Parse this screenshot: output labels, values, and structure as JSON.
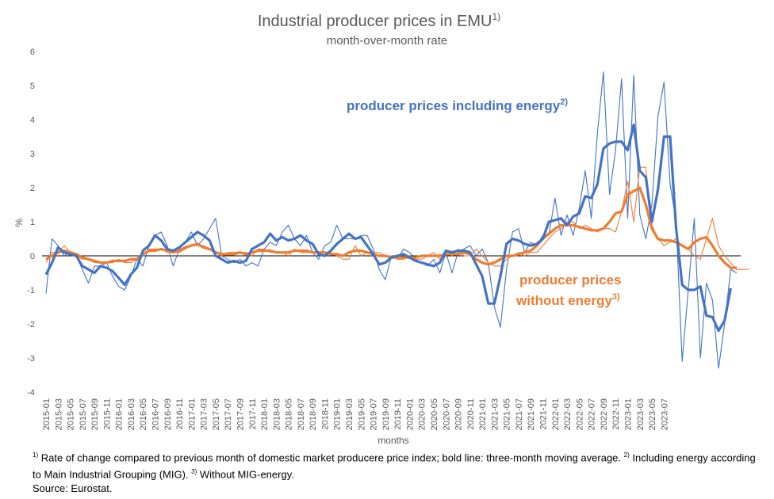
{
  "chart_data": {
    "type": "line",
    "title": "Industrial producer prices in EMU",
    "title_sup": "1)",
    "subtitle": "month-over-month rate",
    "ylabel": "%",
    "xlabel": "months",
    "ylim": [
      -4,
      6
    ],
    "yticks": [
      -4,
      -3,
      -2,
      -1,
      0,
      1,
      2,
      3,
      4,
      5,
      6
    ],
    "grid": false,
    "colors": {
      "including": "#4472C4",
      "without": "#ED7D31"
    },
    "x_labels": [
      "2015-01",
      "2015-03",
      "2015-05",
      "2015-07",
      "2015-09",
      "2015-11",
      "2016-01",
      "2016-03",
      "2016-05",
      "2016-07",
      "2016-09",
      "2016-11",
      "2017-01",
      "2017-03",
      "2017-05",
      "2017-07",
      "2017-09",
      "2017-11",
      "2018-01",
      "2018-03",
      "2018-05",
      "2018-07",
      "2018-09",
      "2018-11",
      "2019-01",
      "2019-03",
      "2019-05",
      "2019-07",
      "2019-09",
      "2019-11",
      "2020-01",
      "2020-03",
      "2020-05",
      "2020-07",
      "2020-09",
      "2020-11",
      "2021-01",
      "2021-03",
      "2021-05",
      "2021-07",
      "2021-09",
      "2021-11",
      "2022-01",
      "2022-03",
      "2022-05",
      "2022-07",
      "2022-09",
      "2022-11",
      "2023-01",
      "2023-03",
      "2023-05",
      "2023-07"
    ],
    "annotations": {
      "including": {
        "text": "producer prices including energy",
        "sup": "2)"
      },
      "without_1": {
        "text": "producer prices"
      },
      "without_2": {
        "text": "without energy",
        "sup": "3)"
      }
    },
    "series": [
      {
        "key": "incl_monthly",
        "label": "producer prices including energy",
        "values": [
          -1.1,
          0.5,
          0.3,
          0.0,
          0.1,
          0.0,
          -0.4,
          -0.8,
          -0.3,
          -0.3,
          -0.2,
          -0.6,
          -0.9,
          -1.0,
          -0.6,
          -0.1,
          -0.3,
          0.3,
          0.6,
          0.7,
          0.3,
          -0.3,
          0.2,
          0.4,
          0.7,
          0.3,
          0.5,
          0.8,
          1.1,
          0.0,
          -0.1,
          -0.2,
          -0.1,
          -0.3,
          -0.2,
          -0.3,
          0.2,
          0.4,
          0.3,
          0.7,
          0.9,
          0.5,
          0.3,
          0.6,
          0.1,
          -0.1,
          0.3,
          0.4,
          0.9,
          0.5,
          0.5,
          0.5,
          0.6,
          0.6,
          0.2,
          -0.4,
          -0.7,
          0.0,
          -0.1,
          0.2,
          0.1,
          -0.1,
          -0.2,
          -0.3,
          -0.1,
          -0.5,
          0.1,
          -0.5,
          0.1,
          0.2,
          0.3,
          0.0,
          0.2,
          -0.2,
          -1.5,
          -2.1,
          -0.4,
          0.7,
          0.8,
          0.1,
          0.4,
          0.3,
          0.6,
          0.6,
          1.7,
          0.6,
          1.2,
          0.6,
          1.4,
          2.5,
          1.1,
          3.6,
          5.4,
          1.8,
          3.1,
          5.2,
          1.1,
          5.3,
          1.2,
          0.5,
          1.5,
          4.1,
          5.1,
          2.1,
          1.0,
          -3.1,
          -1.0,
          1.1,
          -3.0,
          -0.8,
          -1.3,
          -3.3,
          -2.0,
          -0.4,
          -0.5
        ]
      },
      {
        "key": "incl_ma3",
        "label": "three-month moving average",
        "values": [
          -0.55,
          -0.2,
          0.25,
          0.1,
          0.05,
          0.0,
          -0.3,
          -0.4,
          -0.5,
          -0.3,
          -0.35,
          -0.45,
          -0.65,
          -0.85,
          -0.55,
          -0.35,
          0.15,
          0.3,
          0.6,
          0.45,
          0.2,
          0.15,
          0.25,
          0.4,
          0.55,
          0.7,
          0.6,
          0.45,
          0.0,
          -0.1,
          -0.2,
          -0.15,
          -0.2,
          -0.15,
          0.2,
          0.3,
          0.4,
          0.65,
          0.45,
          0.55,
          0.45,
          0.5,
          0.6,
          0.45,
          0.35,
          0.05,
          0.0,
          0.15,
          0.35,
          0.5,
          0.65,
          0.5,
          0.55,
          0.3,
          0.05,
          -0.25,
          -0.2,
          -0.05,
          0.0,
          0.05,
          -0.05,
          -0.15,
          -0.2,
          -0.25,
          -0.3,
          -0.2,
          0.15,
          0.1,
          0.15,
          0.15,
          0.1,
          -0.25,
          -0.6,
          -1.4,
          -1.4,
          -0.6,
          0.35,
          0.5,
          0.45,
          0.35,
          0.3,
          0.35,
          0.5,
          1.0,
          1.05,
          1.1,
          0.9,
          1.15,
          1.25,
          1.75,
          1.7,
          2.1,
          3.15,
          3.3,
          3.35,
          3.35,
          3.1,
          3.85,
          2.5,
          2.3,
          1.0,
          1.95,
          3.5,
          3.5,
          0.8,
          -0.85,
          -1.0,
          -1.0,
          -0.9,
          -1.75,
          -1.8,
          -2.2,
          -1.9,
          -0.95
        ]
      },
      {
        "key": "excl_monthly",
        "label": "producer prices without energy",
        "values": [
          -0.2,
          0.1,
          0.1,
          0.3,
          0.1,
          0.0,
          -0.1,
          -0.1,
          -0.2,
          -0.2,
          -0.2,
          -0.2,
          -0.1,
          -0.2,
          -0.2,
          -0.1,
          0.0,
          0.2,
          0.2,
          0.2,
          0.1,
          0.1,
          0.1,
          0.2,
          0.3,
          0.3,
          0.3,
          0.2,
          0.1,
          0.0,
          0.1,
          0.1,
          0.1,
          0.1,
          0.0,
          0.2,
          0.2,
          0.1,
          0.1,
          0.1,
          0.0,
          0.2,
          0.1,
          0.1,
          0.1,
          0.1,
          0.1,
          0.1,
          0.0,
          -0.1,
          -0.1,
          0.3,
          0.0,
          0.1,
          0.1,
          0.1,
          0.0,
          0.0,
          -0.1,
          -0.1,
          0.0,
          -0.1,
          -0.1,
          0.0,
          0.1,
          -0.1,
          0.1,
          0.0,
          0.2,
          0.0,
          0.0,
          0.2,
          0.0,
          -0.2,
          -0.3,
          -0.3,
          -0.1,
          0.0,
          0.1,
          0.0,
          0.1,
          0.1,
          0.3,
          0.5,
          0.7,
          0.8,
          1.0,
          1.0,
          0.8,
          0.9,
          0.8,
          0.7,
          0.8,
          0.8,
          0.7,
          1.3,
          2.2,
          1.0,
          2.6,
          2.6,
          0.9,
          0.5,
          0.3,
          0.4,
          0.5,
          0.3,
          0.2,
          0.0,
          -0.1,
          0.5,
          1.1,
          0.3,
          0.0,
          -0.2,
          -0.4,
          -0.4,
          -0.4
        ]
      },
      {
        "key": "excl_ma3",
        "label": "without energy three-month moving average",
        "values": [
          -0.1,
          0.0,
          0.1,
          0.15,
          0.1,
          0.05,
          -0.05,
          -0.1,
          -0.15,
          -0.2,
          -0.2,
          -0.15,
          -0.15,
          -0.15,
          -0.1,
          -0.1,
          0.05,
          0.15,
          0.15,
          0.2,
          0.15,
          0.1,
          0.15,
          0.25,
          0.3,
          0.35,
          0.25,
          0.2,
          0.1,
          0.05,
          0.05,
          0.05,
          0.1,
          0.05,
          0.1,
          0.15,
          0.15,
          0.15,
          0.1,
          0.1,
          0.1,
          0.15,
          0.15,
          0.15,
          0.1,
          0.1,
          0.1,
          0.05,
          0.05,
          0.0,
          0.1,
          0.15,
          0.15,
          0.1,
          0.05,
          0.0,
          0.0,
          -0.05,
          -0.05,
          -0.05,
          -0.05,
          -0.05,
          0.0,
          0.0,
          0.0,
          0.0,
          0.05,
          0.05,
          0.05,
          0.1,
          0.05,
          -0.1,
          -0.2,
          -0.25,
          -0.2,
          -0.1,
          0.0,
          0.0,
          0.05,
          0.1,
          0.15,
          0.3,
          0.5,
          0.65,
          0.8,
          0.9,
          0.9,
          0.9,
          0.85,
          0.8,
          0.75,
          0.75,
          0.8,
          1.0,
          1.25,
          1.3,
          1.8,
          1.9,
          2.0,
          1.5,
          0.8,
          0.5,
          0.45,
          0.45,
          0.4,
          0.3,
          0.2,
          0.4,
          0.5,
          0.55,
          0.3,
          0.0,
          -0.2,
          -0.35,
          -0.35
        ]
      }
    ]
  },
  "footnotes": {
    "line1_sup1": "1)",
    "line1_text1": " Rate of change compared to previous month of domestic market producere price index; bold line: three-month moving average. ",
    "line1_sup2": "2)",
    "line1_text2": " Including energy according to Main Industrial Grouping (MIG). ",
    "line1_sup3": "3)",
    "line1_text3": " Without MIG-energy.",
    "source": "Source: Eurostat."
  }
}
